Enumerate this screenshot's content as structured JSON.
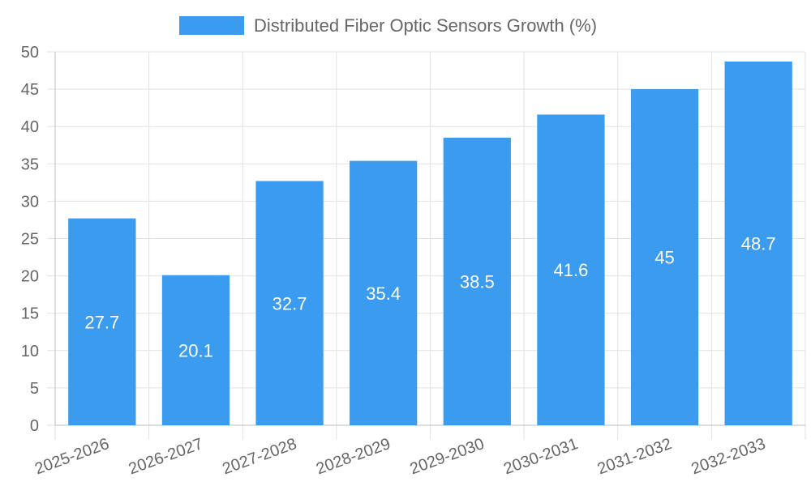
{
  "chart_data": {
    "type": "bar",
    "categories": [
      "2025-2026",
      "2026-2027",
      "2027-2028",
      "2028-2029",
      "2029-2030",
      "2030-2031",
      "2031-2032",
      "2032-2033"
    ],
    "series": [
      {
        "name": "Distributed Fiber Optic Sensors Growth (%)",
        "values": [
          27.7,
          20.1,
          32.7,
          35.4,
          38.5,
          41.6,
          45,
          48.7
        ],
        "color": "#3a9bef"
      }
    ],
    "data_labels": [
      "27.7",
      "20.1",
      "32.7",
      "35.4",
      "38.5",
      "41.6",
      "45",
      "48.7"
    ],
    "ylim": [
      0,
      50
    ],
    "y_ticks": [
      0,
      5,
      10,
      15,
      20,
      25,
      30,
      35,
      40,
      45,
      50
    ],
    "grid": true,
    "legend_position": "top-center"
  }
}
